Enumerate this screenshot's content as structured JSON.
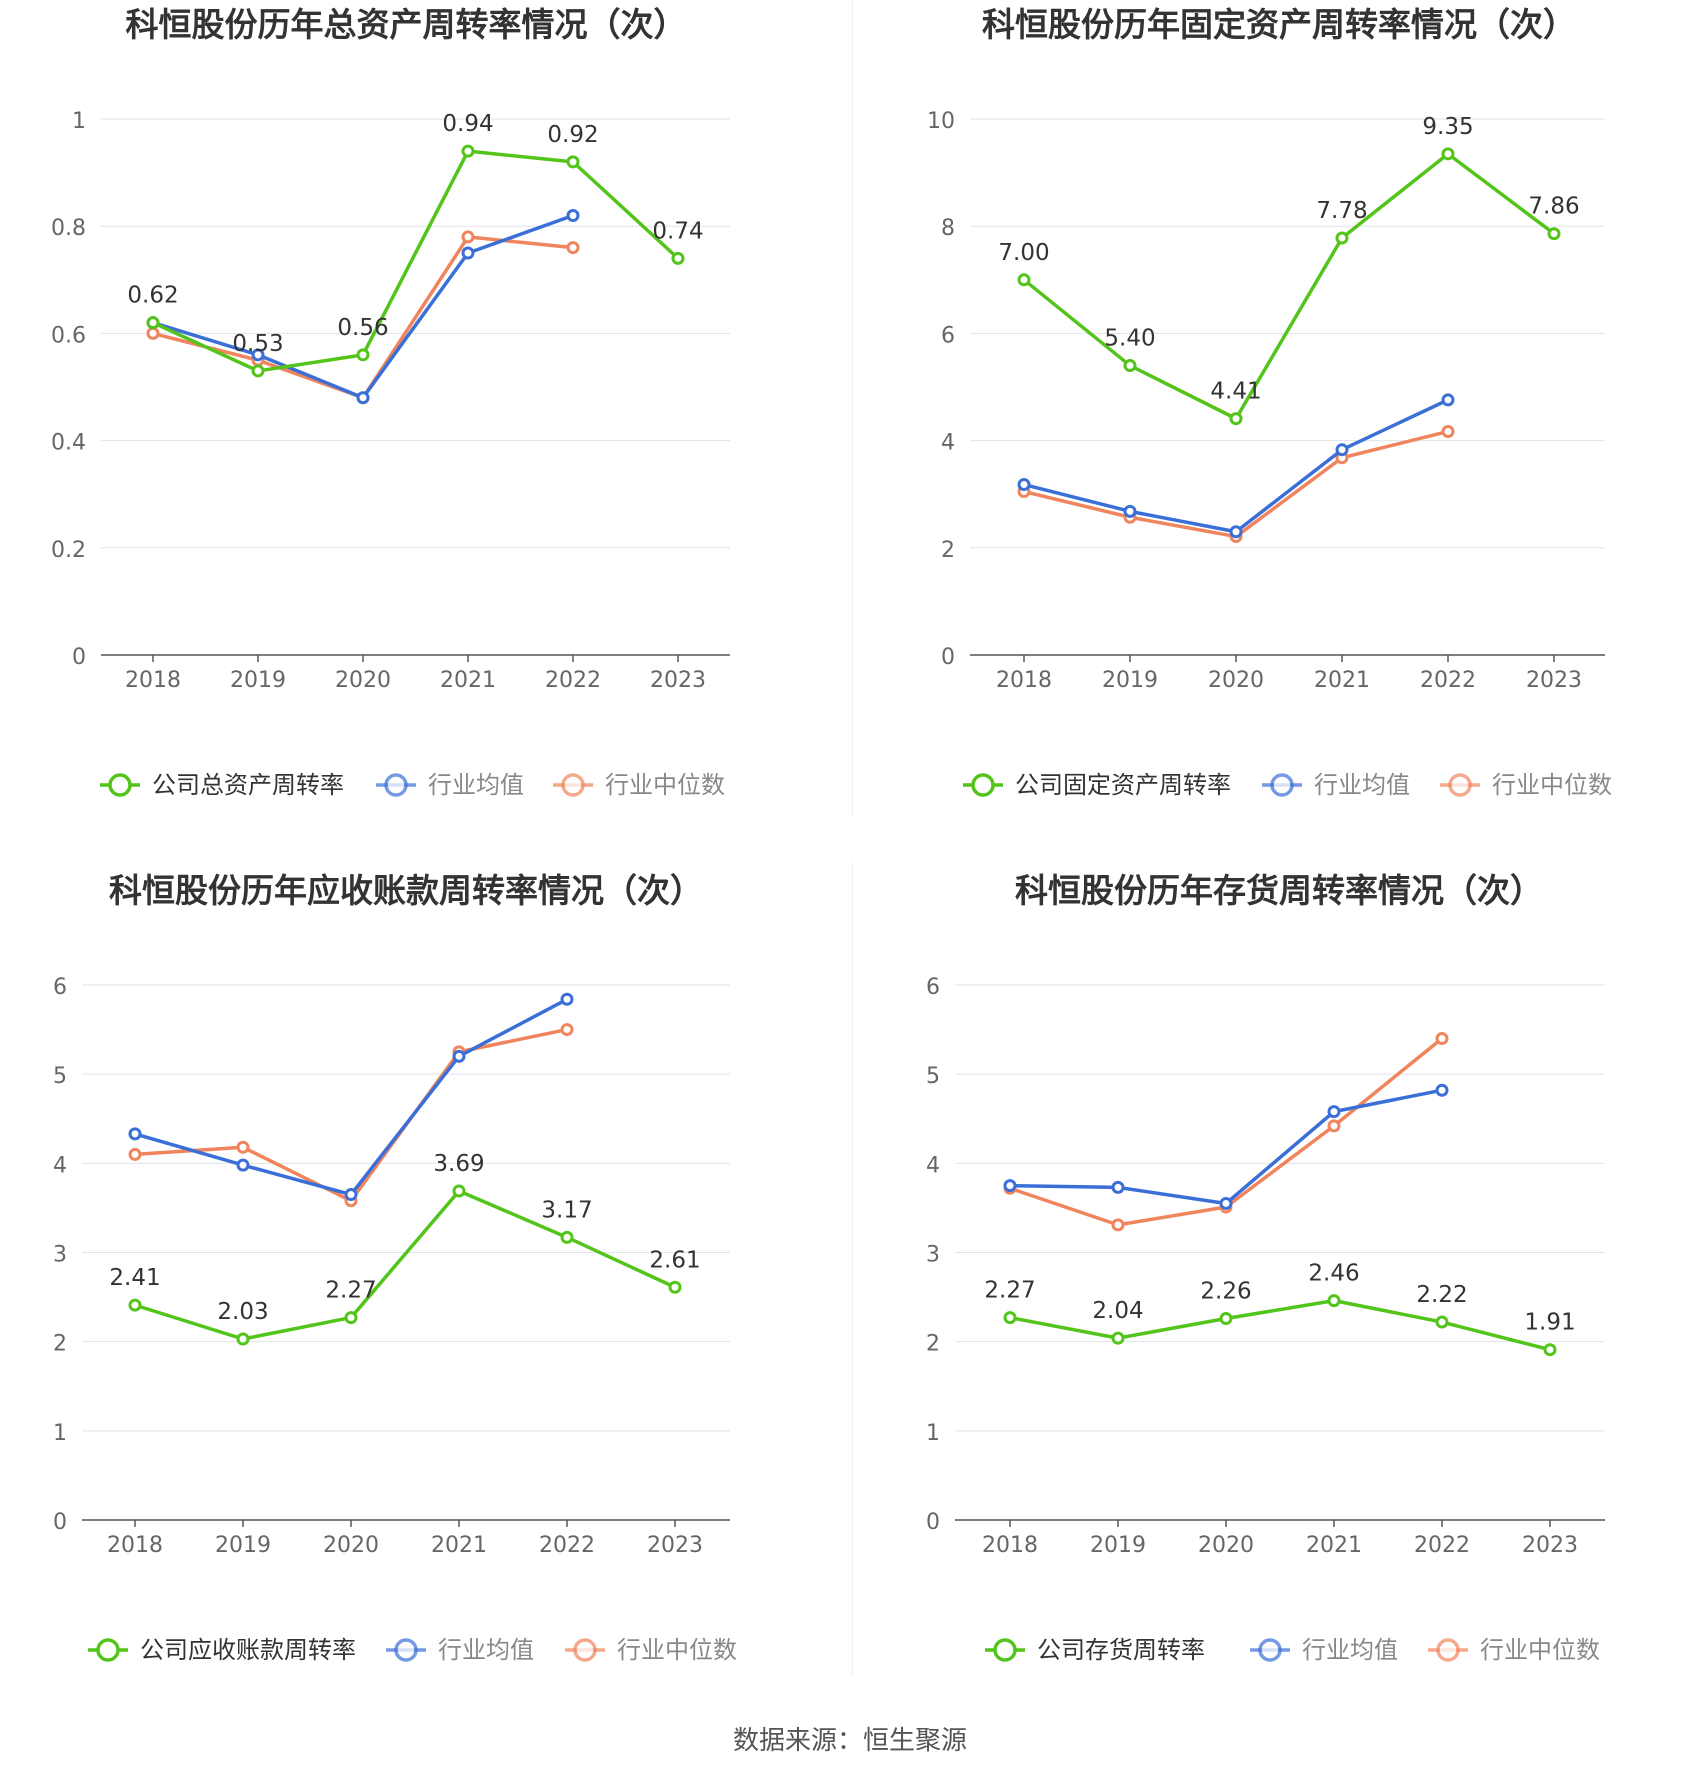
{
  "chart_data": [
    {
      "type": "line",
      "title": "科恒股份历年总资产周转率情况（次）",
      "categories": [
        "2018",
        "2019",
        "2020",
        "2021",
        "2022",
        "2023"
      ],
      "y_ticks": [
        "0",
        "0.2",
        "0.4",
        "0.6",
        "0.8",
        "1"
      ],
      "ylim": [
        0,
        1
      ],
      "grid": true,
      "legend_position": "bottom",
      "series": [
        {
          "name": "公司总资产周转率",
          "color": "#52c41a",
          "values": [
            0.62,
            0.53,
            0.56,
            0.94,
            0.92,
            0.74
          ],
          "labels": [
            "0.62",
            "0.53",
            "0.56",
            "0.94",
            "0.92",
            "0.74"
          ]
        },
        {
          "name": "行业均值",
          "color": "#3b6fd8",
          "values": [
            0.62,
            0.56,
            0.48,
            0.75,
            0.82,
            null
          ]
        },
        {
          "name": "行业中位数",
          "color": "#f0845c",
          "values": [
            0.6,
            0.55,
            0.48,
            0.78,
            0.76,
            null
          ]
        }
      ]
    },
    {
      "type": "line",
      "title": "科恒股份历年固定资产周转率情况（次）",
      "categories": [
        "2018",
        "2019",
        "2020",
        "2021",
        "2022",
        "2023"
      ],
      "y_ticks": [
        "0",
        "2",
        "4",
        "6",
        "8",
        "10"
      ],
      "ylim": [
        0,
        10
      ],
      "grid": true,
      "legend_position": "bottom",
      "series": [
        {
          "name": "公司固定资产周转率",
          "color": "#52c41a",
          "values": [
            7.0,
            5.4,
            4.41,
            7.78,
            9.35,
            7.86
          ],
          "labels": [
            "7.00",
            "5.40",
            "4.41",
            "7.78",
            "9.35",
            "7.86"
          ]
        },
        {
          "name": "行业均值",
          "color": "#3b6fd8",
          "values": [
            3.18,
            2.68,
            2.3,
            3.83,
            4.76,
            null
          ]
        },
        {
          "name": "行业中位数",
          "color": "#f0845c",
          "values": [
            3.05,
            2.57,
            2.21,
            3.68,
            4.17,
            null
          ]
        }
      ]
    },
    {
      "type": "line",
      "title": "科恒股份历年应收账款周转率情况（次）",
      "categories": [
        "2018",
        "2019",
        "2020",
        "2021",
        "2022",
        "2023"
      ],
      "y_ticks": [
        "0",
        "1",
        "2",
        "3",
        "4",
        "5",
        "6"
      ],
      "ylim": [
        0,
        6
      ],
      "grid": true,
      "legend_position": "bottom",
      "series": [
        {
          "name": "公司应收账款周转率",
          "color": "#52c41a",
          "values": [
            2.41,
            2.03,
            2.27,
            3.69,
            3.17,
            2.61
          ],
          "labels": [
            "2.41",
            "2.03",
            "2.27",
            "3.69",
            "3.17",
            "2.61"
          ]
        },
        {
          "name": "行业均值",
          "color": "#3b6fd8",
          "values": [
            4.33,
            3.98,
            3.65,
            5.2,
            5.84,
            null
          ]
        },
        {
          "name": "行业中位数",
          "color": "#f0845c",
          "values": [
            4.1,
            4.18,
            3.58,
            5.25,
            5.5,
            null
          ]
        }
      ]
    },
    {
      "type": "line",
      "title": "科恒股份历年存货周转率情况（次）",
      "categories": [
        "2018",
        "2019",
        "2020",
        "2021",
        "2022",
        "2023"
      ],
      "y_ticks": [
        "0",
        "1",
        "2",
        "3",
        "4",
        "5",
        "6"
      ],
      "ylim": [
        0,
        6
      ],
      "grid": true,
      "legend_position": "bottom",
      "series": [
        {
          "name": "公司存货周转率",
          "color": "#52c41a",
          "values": [
            2.27,
            2.04,
            2.26,
            2.46,
            2.22,
            1.91
          ],
          "labels": [
            "2.27",
            "2.04",
            "2.26",
            "2.46",
            "2.22",
            "1.91"
          ]
        },
        {
          "name": "行业均值",
          "color": "#3b6fd8",
          "values": [
            3.75,
            3.73,
            3.55,
            4.58,
            4.82,
            null
          ]
        },
        {
          "name": "行业中位数",
          "color": "#f0845c",
          "values": [
            3.72,
            3.31,
            3.51,
            4.42,
            5.4,
            null
          ]
        }
      ]
    }
  ],
  "footer": {
    "source": "数据来源：恒生聚源"
  }
}
